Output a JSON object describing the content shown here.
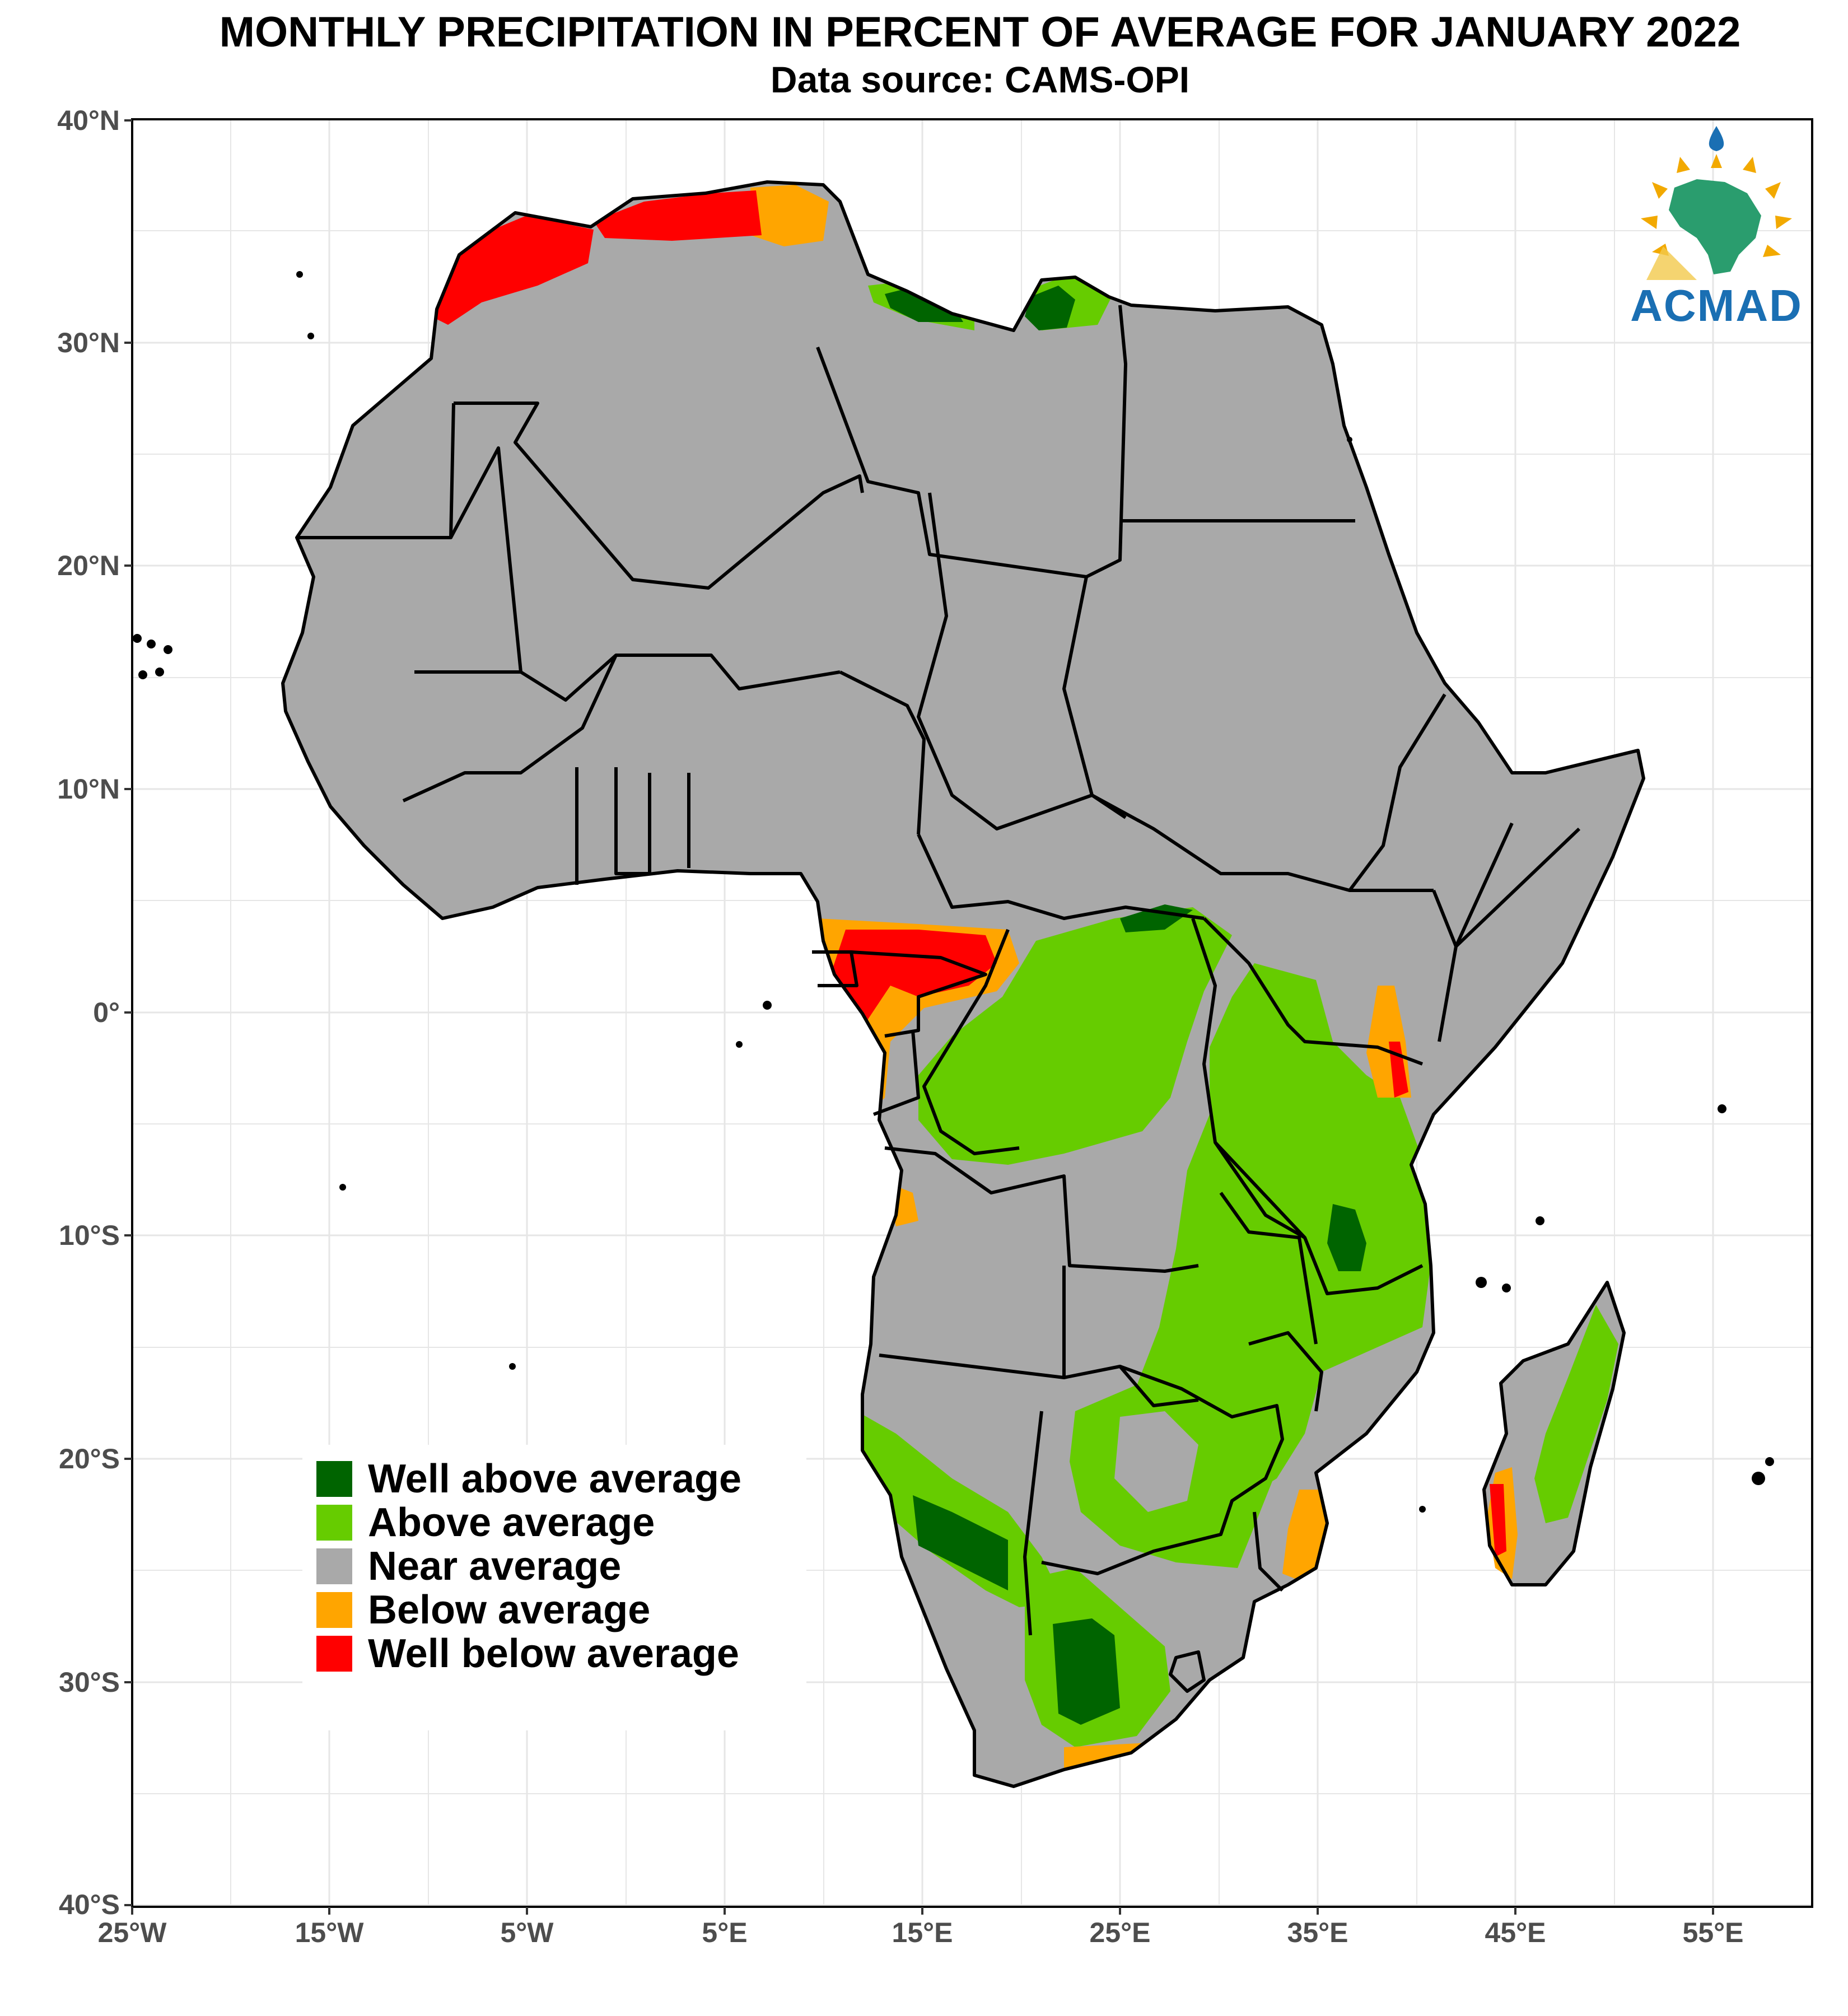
{
  "title": "MONTHLY PRECIPITATION IN PERCENT OF AVERAGE FOR JANUARY 2022",
  "subtitle": "Data source: CAMS-OPI",
  "axes": {
    "y_ticks": [
      "40°N",
      "30°N",
      "20°N",
      "10°N",
      "0°",
      "10°S",
      "20°S",
      "30°S",
      "40°S"
    ],
    "x_ticks": [
      "25°W",
      "15°W",
      "5°W",
      "5°E",
      "15°E",
      "25°E",
      "35°E",
      "45°E",
      "55°E"
    ],
    "lon_range": [
      -25,
      60
    ],
    "lat_range": [
      -40,
      40
    ]
  },
  "legend": [
    {
      "label": "Well above average",
      "color": "#006400"
    },
    {
      "label": "Above average",
      "color": "#66cc00"
    },
    {
      "label": "Near average",
      "color": "#a9a9a9"
    },
    {
      "label": "Below average",
      "color": "#ffa500"
    },
    {
      "label": "Well below average",
      "color": "#ff0000"
    }
  ],
  "logo": {
    "text": "ACMAD",
    "icon": "acmad-africa-logo-icon"
  }
}
